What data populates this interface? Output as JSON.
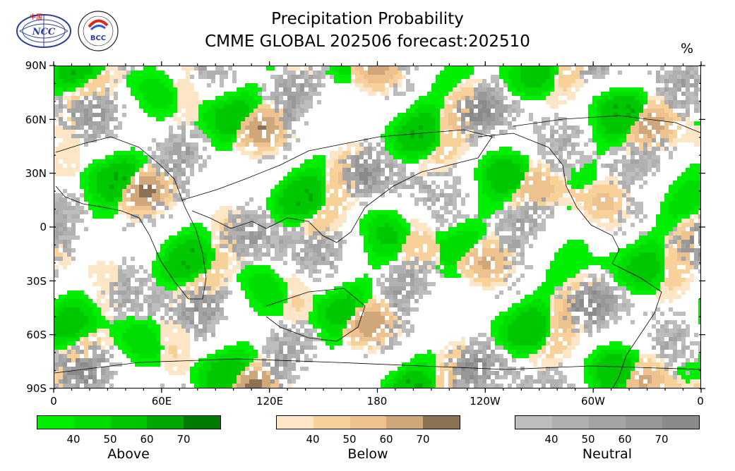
{
  "title": "Precipitation Probability",
  "subtitle": "CMME GLOBAL 202506 forecast:202510",
  "unit": "%",
  "logos": {
    "left_text": "NCC",
    "left_top_text": "中国",
    "right_text": "BCC"
  },
  "map": {
    "projection": "equirectangular",
    "lon_range": [
      0,
      360
    ],
    "lat_range": [
      -90,
      90
    ],
    "y_ticks": [
      "90N",
      "60N",
      "30N",
      "0",
      "30S",
      "60S",
      "90S"
    ],
    "x_ticks": [
      "0",
      "60E",
      "120E",
      "180",
      "120W",
      "60W",
      "0"
    ]
  },
  "legend": [
    {
      "name": "Above",
      "ticks": [
        "40",
        "50",
        "60",
        "70"
      ],
      "colors": [
        "#00ee00",
        "#00dd00",
        "#00c800",
        "#00a800",
        "#007a00"
      ]
    },
    {
      "name": "Below",
      "ticks": [
        "40",
        "50",
        "60",
        "70"
      ],
      "colors": [
        "#fde6c6",
        "#f7d09a",
        "#eec28e",
        "#cfa77a",
        "#8b7253"
      ]
    },
    {
      "name": "Neutral",
      "ticks": [
        "40",
        "50",
        "60",
        "70"
      ],
      "colors": [
        "#bdbdbd",
        "#b0b0b0",
        "#a4a4a4",
        "#989898",
        "#8a8a8a"
      ]
    }
  ]
}
